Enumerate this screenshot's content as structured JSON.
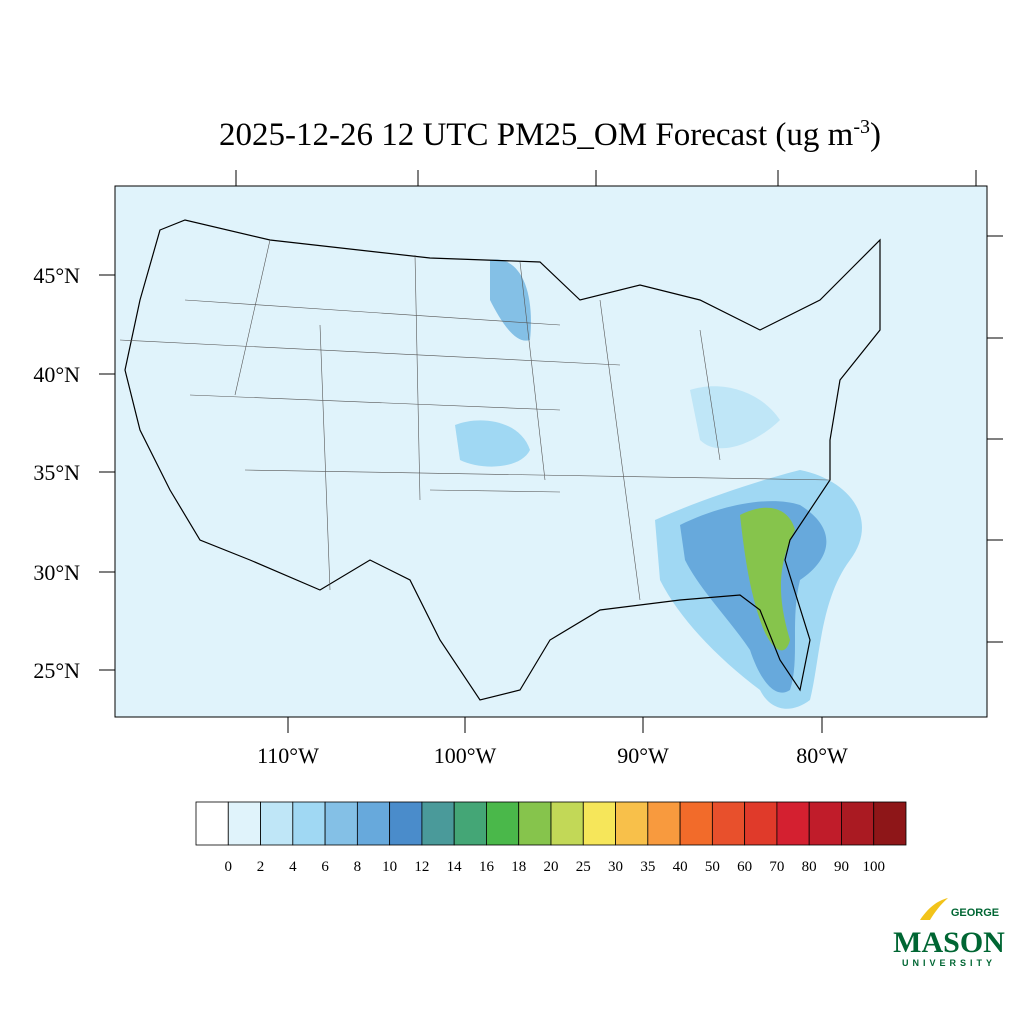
{
  "title": {
    "main": "2025-12-26 12 UTC PM25_OM Forecast (ug m",
    "superscript": "-3",
    "end": ")"
  },
  "lat_labels": [
    "45°N",
    "40°N",
    "35°N",
    "30°N",
    "25°N"
  ],
  "lon_labels": [
    "110°W",
    "100°W",
    "90°W",
    "80°W"
  ],
  "colorbar": {
    "levels": [
      0,
      2,
      4,
      6,
      8,
      10,
      12,
      14,
      16,
      18,
      20,
      25,
      30,
      35,
      40,
      50,
      60,
      70,
      80,
      90,
      100
    ],
    "colors": [
      "#ffffff",
      "#e0f3fb",
      "#bfe6f7",
      "#a0d8f3",
      "#84c0e6",
      "#67a9dc",
      "#4a8ccb",
      "#4a9a9a",
      "#44a676",
      "#4ab84a",
      "#86c44c",
      "#c2d857",
      "#f6e65a",
      "#f8c04a",
      "#f89a3e",
      "#f26b2a",
      "#e8502c",
      "#e03a2a",
      "#d42030",
      "#c01c2a",
      "#aa1a22",
      "#8e1618"
    ]
  },
  "logo": {
    "top": "GEORGE",
    "main": "MASON",
    "bottom": "UNIVERSITY"
  }
}
